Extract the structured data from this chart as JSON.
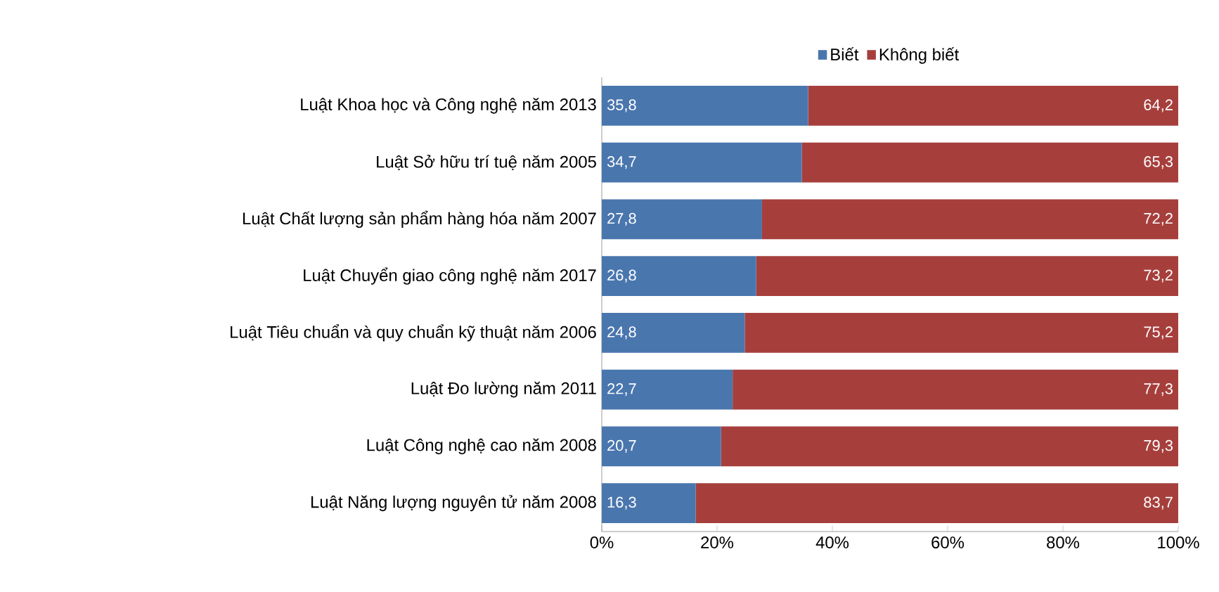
{
  "chart_data": {
    "type": "bar",
    "orientation": "horizontal",
    "stacked": true,
    "categories": [
      "Luật Khoa học và Công nghệ năm 2013",
      "Luật Sở hữu trí tuệ năm 2005",
      "Luật Chất lượng sản phẩm hàng hóa năm 2007",
      "Luật Chuyển giao công nghệ năm 2017",
      "Luật Tiêu chuẩn và quy chuẩn kỹ thuật năm 2006",
      "Luật Đo lường năm 2011",
      "Luật Công nghệ cao năm 2008",
      "Luật Năng lượng nguyên tử năm 2008"
    ],
    "series": [
      {
        "name": "Biết",
        "color": "#4a76ae",
        "values": [
          35.8,
          34.7,
          27.8,
          26.8,
          24.8,
          22.7,
          20.7,
          16.3
        ],
        "value_labels": [
          "35,8",
          "34,7",
          "27,8",
          "26,8",
          "24,8",
          "22,7",
          "20,7",
          "16,3"
        ]
      },
      {
        "name": "Không biết",
        "color": "#a63f3c",
        "values": [
          64.2,
          65.3,
          72.2,
          73.2,
          75.2,
          77.3,
          79.3,
          83.7
        ],
        "value_labels": [
          "64,2",
          "65,3",
          "72,2",
          "73,2",
          "75,2",
          "77,3",
          "79,3",
          "83,7"
        ]
      }
    ],
    "xlim": [
      0,
      100
    ],
    "xticks": [
      {
        "value": 0,
        "label": "0%"
      },
      {
        "value": 20,
        "label": "20%"
      },
      {
        "value": 40,
        "label": "40%"
      },
      {
        "value": 60,
        "label": "60%"
      },
      {
        "value": 80,
        "label": "80%"
      },
      {
        "value": 100,
        "label": "100%"
      }
    ],
    "legend": "top",
    "grid": false
  }
}
